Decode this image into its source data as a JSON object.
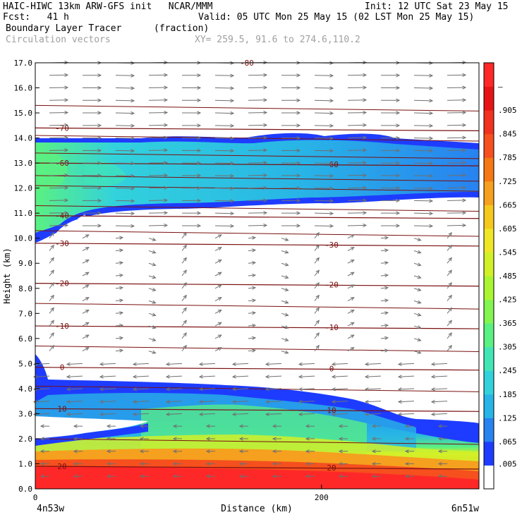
{
  "header": {
    "line1_left": "HAIC-HIWC 13km ARW-GFS init   NCAR/MMM",
    "line1_right": "Init: 12 UTC Sat 23 May 15",
    "line2_left": "Fcst:   41 h",
    "line2_right": "Valid: 05 UTC Mon 25 May 15 (02 LST Mon 25 May 15)",
    "line3_left": "Boundary Layer Tracer",
    "line3_units": "(fraction)",
    "line4_left": "Circulation vectors",
    "line4_right": "XY= 259.5, 91.6 to 274.6,110.2"
  },
  "chart_data": {
    "type": "heatmap",
    "xlabel": "Distance (km)",
    "ylabel": "Height (km)",
    "xlim": [
      0,
      310
    ],
    "ylim": [
      0,
      17
    ],
    "x_ticks": [
      {
        "value": 0,
        "label": "0"
      },
      {
        "value": 200,
        "label": "200"
      }
    ],
    "x_end_labels": {
      "left": "4n53w",
      "right": "6n51w"
    },
    "y_ticks": [
      "0.0",
      "1.0",
      "2.0",
      "3.0",
      "4.0",
      "5.0",
      "6.0",
      "7.0",
      "8.0",
      "9.0",
      "10.0",
      "11.0",
      "12.0",
      "13.0",
      "14.0",
      "15.0",
      "16.0",
      "17.0"
    ],
    "colorbar": {
      "labels": [
        ".005",
        ".065",
        ".125",
        ".185",
        ".245",
        ".305",
        ".365",
        ".425",
        ".485",
        ".545",
        ".605",
        ".665",
        ".725",
        ".785",
        ".845",
        ".905",
        "–"
      ],
      "colors": [
        "#ffffff",
        "#1e3cff",
        "#2882f0",
        "#28b4e6",
        "#32d2dc",
        "#42e6b4",
        "#5af082",
        "#82f550",
        "#aaf532",
        "#d2f028",
        "#f0e628",
        "#f5c81e",
        "#f5a01e",
        "#f57814",
        "#f5501e",
        "#f0321e",
        "#e61414",
        "#ff2828"
      ]
    },
    "temperature_isotherms": [
      {
        "label": "-70",
        "km": 14.4
      },
      {
        "label": "-60",
        "km": 13.0
      },
      {
        "label": "-40",
        "km": 10.9
      },
      {
        "label": "-30",
        "km": 9.8
      },
      {
        "label": "-20",
        "km": 8.2
      },
      {
        "label": "-10",
        "km": 6.5
      },
      {
        "label": "0",
        "km": 4.85
      },
      {
        "label": "10",
        "km": 3.2
      },
      {
        "label": "20",
        "km": 0.9
      }
    ],
    "top_label": "-80",
    "tracer_layers": [
      {
        "name": "upper",
        "bottom_km": 10.0,
        "top_km": 14.0,
        "peak_fraction": 0.245
      },
      {
        "name": "lower",
        "bottom_km": 0.0,
        "top_km": 5.0,
        "peak_fraction": 0.95
      }
    ],
    "grid": false,
    "legend": "right"
  }
}
